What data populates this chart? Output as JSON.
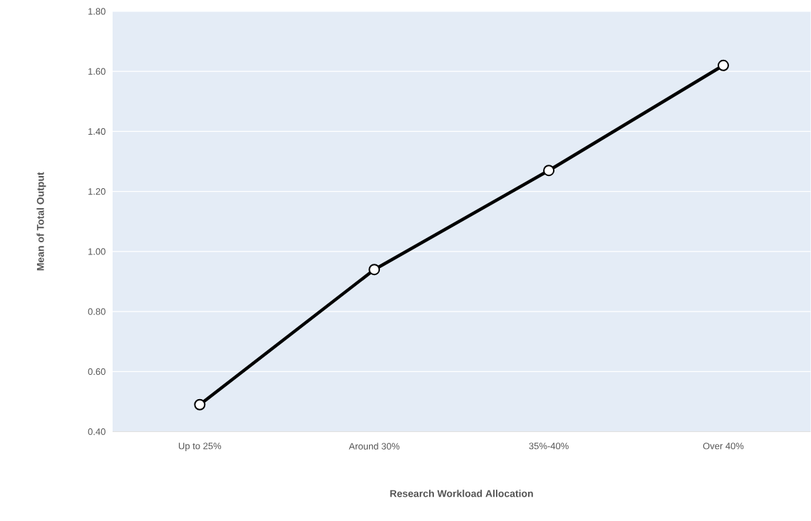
{
  "chart_data": {
    "type": "line",
    "xlabel": "Research Workload Allocation",
    "ylabel": "Mean of Total Output",
    "categories": [
      "Up to 25%",
      "Around 30%",
      "35%-40%",
      "Over 40%"
    ],
    "values": [
      0.49,
      0.94,
      1.27,
      1.62
    ],
    "color": "#000000",
    "ylim": [
      0.4,
      1.8
    ],
    "yticks": [
      {
        "value": 0.4,
        "label": "0.40"
      },
      {
        "value": 0.6,
        "label": "0.60"
      },
      {
        "value": 0.8,
        "label": "0.80"
      },
      {
        "value": 1.0,
        "label": "1.00"
      },
      {
        "value": 1.2,
        "label": "1.20"
      },
      {
        "value": 1.4,
        "label": "1.40"
      },
      {
        "value": 1.6,
        "label": "1.60"
      },
      {
        "value": 1.8,
        "label": "1.80"
      }
    ],
    "grid": "y",
    "marker": "circle",
    "line_style": "solid"
  }
}
